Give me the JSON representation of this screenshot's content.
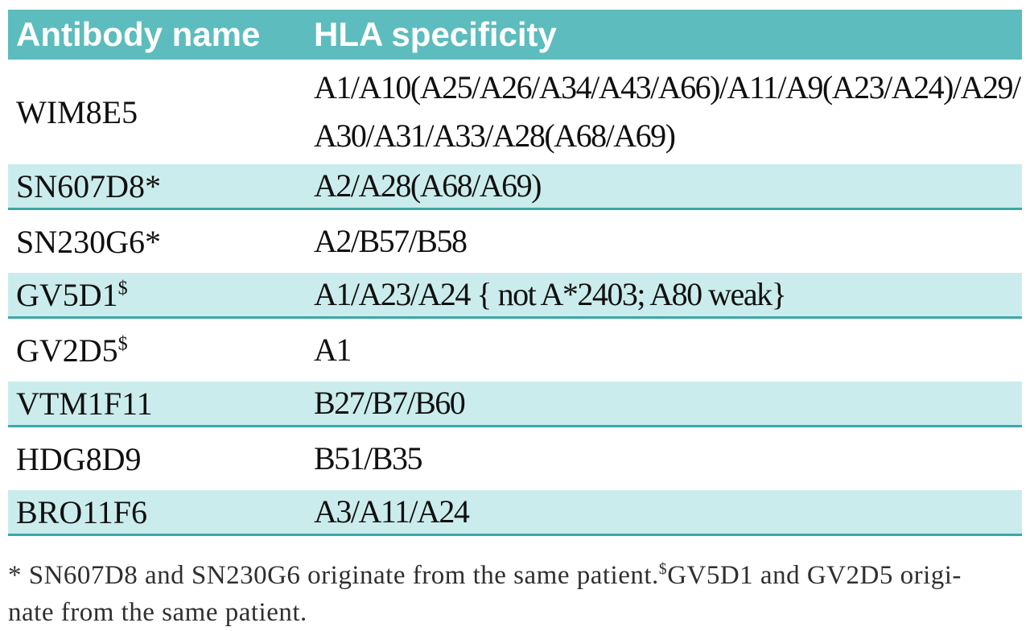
{
  "table": {
    "columns": [
      {
        "label": "Antibody name"
      },
      {
        "label": "HLA specificity"
      }
    ],
    "rows": [
      {
        "name": "WIM8E5",
        "name_sup": "",
        "spec": "A1/A10(A25/A26/A34/A43/A66)/A11/A9(A23/A24)/A29/\nA30/A31/A33/A28(A68/A69)",
        "shaded": false
      },
      {
        "name": "SN607D8*",
        "name_sup": "",
        "spec": "A2/A28(A68/A69)",
        "shaded": true
      },
      {
        "name": "SN230G6*",
        "name_sup": "",
        "spec": "A2/B57/B58",
        "shaded": false
      },
      {
        "name": "GV5D1",
        "name_sup": "$",
        "spec": "A1/A23/A24 { not A*2403; A80 weak}",
        "shaded": true
      },
      {
        "name": "GV2D5",
        "name_sup": "$",
        "spec": "A1",
        "shaded": false
      },
      {
        "name": "VTM1F11",
        "name_sup": "",
        "spec": "B27/B7/B60",
        "shaded": true
      },
      {
        "name": "HDG8D9",
        "name_sup": "",
        "spec": "B51/B35",
        "shaded": false
      },
      {
        "name": "BRO11F6",
        "name_sup": "",
        "spec": "A3/A11/A24",
        "shaded": true
      }
    ],
    "footnote": {
      "part1": "* SN607D8 and SN230G6 originate from the same patient.",
      "sup": "$",
      "part2": "GV5D1 and GV2D5 origi-\nnate from the same patient."
    }
  },
  "colors": {
    "header_bg": "#5dbcbd",
    "header_text": "#ffffff",
    "shaded_row_bg": "#cbecec",
    "row_border": "#3aa7a9",
    "body_text": "#101010",
    "footnote_text": "#2f2f2f"
  }
}
